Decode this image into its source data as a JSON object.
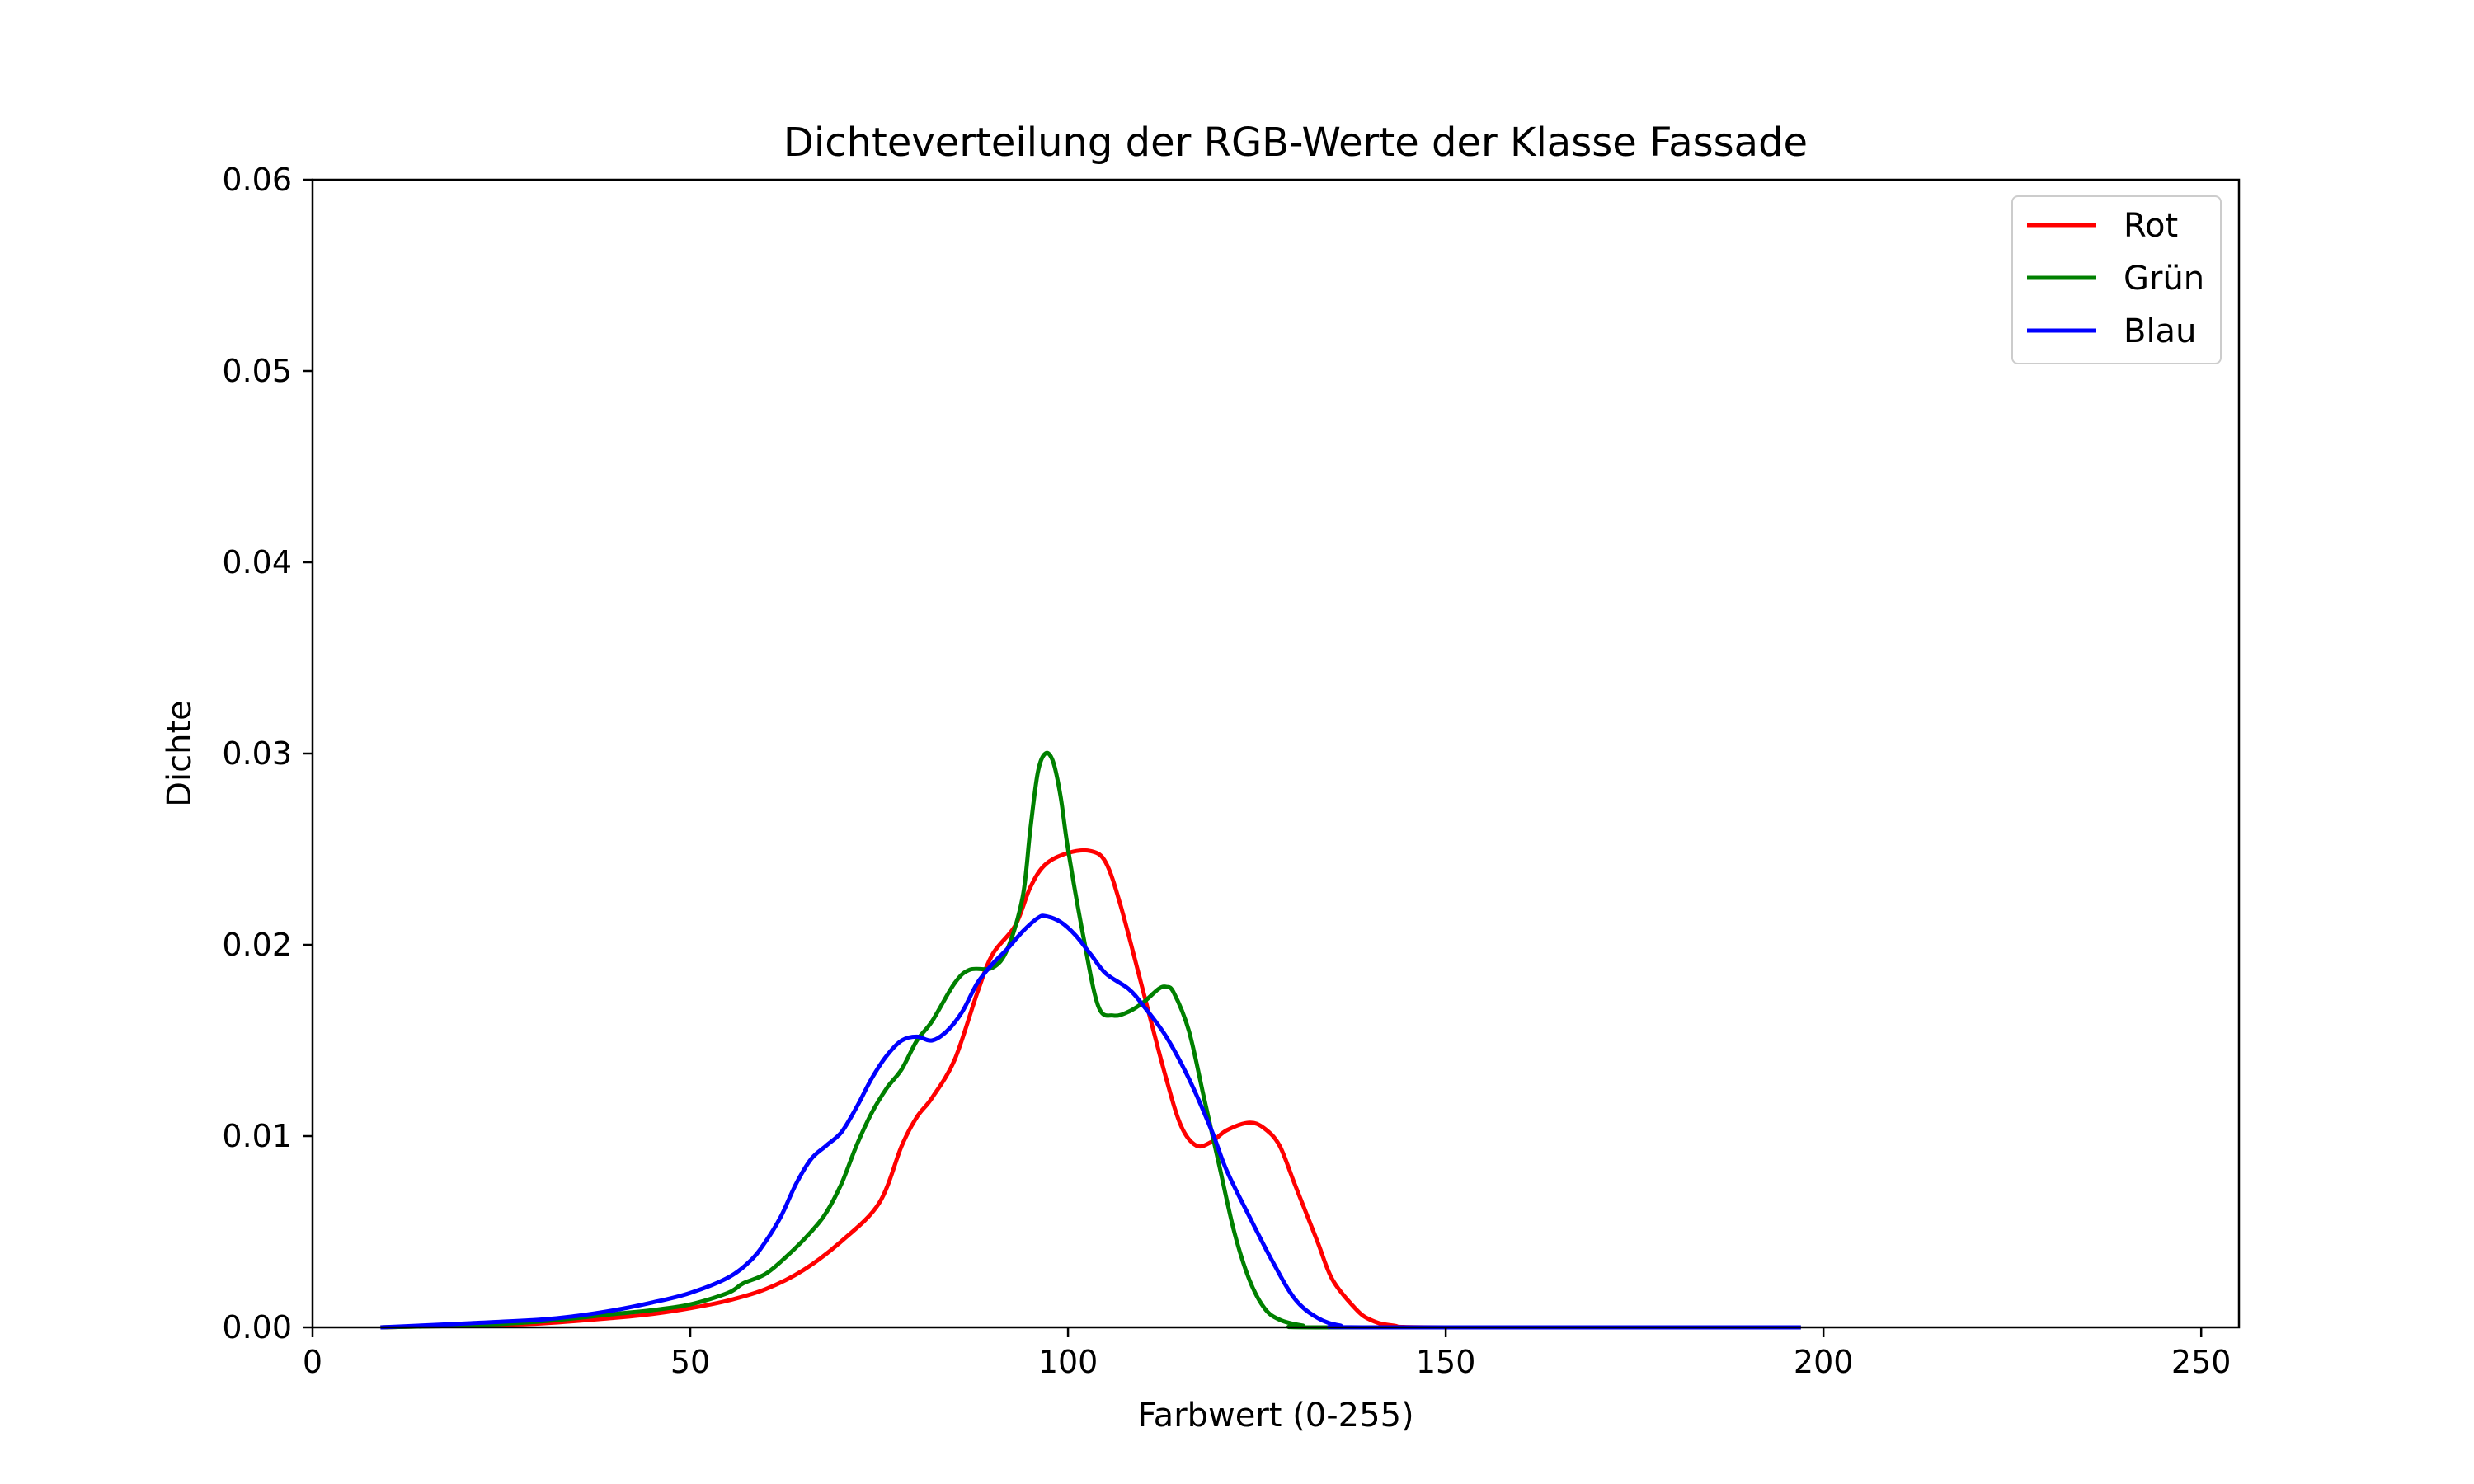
{
  "chart_data": {
    "type": "line",
    "title": "Dichteverteilung der RGB-Werte der Klasse Fassade",
    "xlabel": "Farbwert (0-255)",
    "ylabel": "Dichte",
    "xlim": [
      0,
      255
    ],
    "ylim": [
      0,
      0.06
    ],
    "xticks": [
      0,
      50,
      100,
      150,
      200,
      250
    ],
    "yticks": [
      0.0,
      0.01,
      0.02,
      0.03,
      0.04,
      0.05,
      0.06
    ],
    "xtick_labels": [
      "0",
      "50",
      "100",
      "150",
      "200",
      "250"
    ],
    "ytick_labels": [
      "0.00",
      "0.01",
      "0.02",
      "0.03",
      "0.04",
      "0.05",
      "0.06"
    ],
    "grid": false,
    "legend_position": "top-right",
    "series": [
      {
        "name": "Rot",
        "color": "#ff0000",
        "points": [
          [
            9,
            0
          ],
          [
            20,
            0.0001
          ],
          [
            30,
            0.0002
          ],
          [
            40,
            0.0005
          ],
          [
            45,
            0.0007
          ],
          [
            50,
            0.001
          ],
          [
            55,
            0.0014
          ],
          [
            60,
            0.002
          ],
          [
            65,
            0.003
          ],
          [
            70,
            0.0045
          ],
          [
            75,
            0.0065
          ],
          [
            78,
            0.0095
          ],
          [
            80,
            0.011
          ],
          [
            82,
            0.012
          ],
          [
            85,
            0.014
          ],
          [
            88,
            0.0175
          ],
          [
            90,
            0.0195
          ],
          [
            93,
            0.021
          ],
          [
            95,
            0.023
          ],
          [
            97,
            0.0242
          ],
          [
            100,
            0.0248
          ],
          [
            103,
            0.0249
          ],
          [
            105,
            0.0243
          ],
          [
            107,
            0.022
          ],
          [
            110,
            0.0175
          ],
          [
            113,
            0.013
          ],
          [
            115,
            0.0105
          ],
          [
            117,
            0.0095
          ],
          [
            119,
            0.0097
          ],
          [
            121,
            0.0103
          ],
          [
            124,
            0.0107
          ],
          [
            126,
            0.0104
          ],
          [
            128,
            0.0095
          ],
          [
            130,
            0.0075
          ],
          [
            133,
            0.0045
          ],
          [
            135,
            0.0025
          ],
          [
            138,
            0.001
          ],
          [
            140,
            0.0004
          ],
          [
            143,
            0.0001
          ],
          [
            150,
            0
          ],
          [
            197,
            0
          ]
        ]
      },
      {
        "name": "Grün",
        "color": "#008000",
        "points": [
          [
            9,
            0
          ],
          [
            20,
            0.0001
          ],
          [
            30,
            0.0003
          ],
          [
            40,
            0.0007
          ],
          [
            45,
            0.0009
          ],
          [
            50,
            0.0012
          ],
          [
            55,
            0.0018
          ],
          [
            57,
            0.0023
          ],
          [
            60,
            0.0028
          ],
          [
            63,
            0.0038
          ],
          [
            66,
            0.005
          ],
          [
            68,
            0.006
          ],
          [
            70,
            0.0075
          ],
          [
            72,
            0.0095
          ],
          [
            74,
            0.0112
          ],
          [
            76,
            0.0125
          ],
          [
            78,
            0.0135
          ],
          [
            80,
            0.015
          ],
          [
            82,
            0.016
          ],
          [
            85,
            0.018
          ],
          [
            87,
            0.0187
          ],
          [
            90,
            0.0188
          ],
          [
            92,
            0.0198
          ],
          [
            94,
            0.0225
          ],
          [
            95,
            0.026
          ],
          [
            96,
            0.029
          ],
          [
            97,
            0.03
          ],
          [
            98,
            0.0296
          ],
          [
            99,
            0.0278
          ],
          [
            100,
            0.025
          ],
          [
            102,
            0.0205
          ],
          [
            104,
            0.0168
          ],
          [
            106,
            0.0163
          ],
          [
            108,
            0.0165
          ],
          [
            110,
            0.017
          ],
          [
            112,
            0.0177
          ],
          [
            113,
            0.0178
          ],
          [
            114,
            0.0175
          ],
          [
            116,
            0.0155
          ],
          [
            118,
            0.012
          ],
          [
            120,
            0.0085
          ],
          [
            122,
            0.005
          ],
          [
            124,
            0.0025
          ],
          [
            126,
            0.001
          ],
          [
            128,
            0.0004
          ],
          [
            131,
            0.0001
          ],
          [
            135,
            0
          ],
          [
            197,
            0
          ]
        ]
      },
      {
        "name": "Blau",
        "color": "#0000ff",
        "points": [
          [
            9,
            0
          ],
          [
            20,
            0.0002
          ],
          [
            30,
            0.0004
          ],
          [
            35,
            0.0006
          ],
          [
            40,
            0.0009
          ],
          [
            45,
            0.0013
          ],
          [
            50,
            0.0018
          ],
          [
            55,
            0.0026
          ],
          [
            58,
            0.0035
          ],
          [
            60,
            0.0045
          ],
          [
            62,
            0.0058
          ],
          [
            64,
            0.0075
          ],
          [
            66,
            0.0088
          ],
          [
            68,
            0.0095
          ],
          [
            70,
            0.0102
          ],
          [
            72,
            0.0115
          ],
          [
            74,
            0.013
          ],
          [
            76,
            0.0142
          ],
          [
            78,
            0.015
          ],
          [
            80,
            0.0152
          ],
          [
            82,
            0.015
          ],
          [
            84,
            0.0155
          ],
          [
            86,
            0.0165
          ],
          [
            88,
            0.018
          ],
          [
            90,
            0.019
          ],
          [
            92,
            0.0198
          ],
          [
            94,
            0.0207
          ],
          [
            96,
            0.0214
          ],
          [
            97,
            0.0215
          ],
          [
            99,
            0.0212
          ],
          [
            101,
            0.0205
          ],
          [
            103,
            0.0195
          ],
          [
            105,
            0.0185
          ],
          [
            108,
            0.0177
          ],
          [
            110,
            0.0168
          ],
          [
            113,
            0.0152
          ],
          [
            116,
            0.013
          ],
          [
            119,
            0.0103
          ],
          [
            121,
            0.0082
          ],
          [
            124,
            0.0058
          ],
          [
            127,
            0.0035
          ],
          [
            130,
            0.0015
          ],
          [
            133,
            0.0005
          ],
          [
            136,
            0.0001
          ],
          [
            140,
            0
          ],
          [
            197,
            0
          ]
        ]
      }
    ]
  }
}
